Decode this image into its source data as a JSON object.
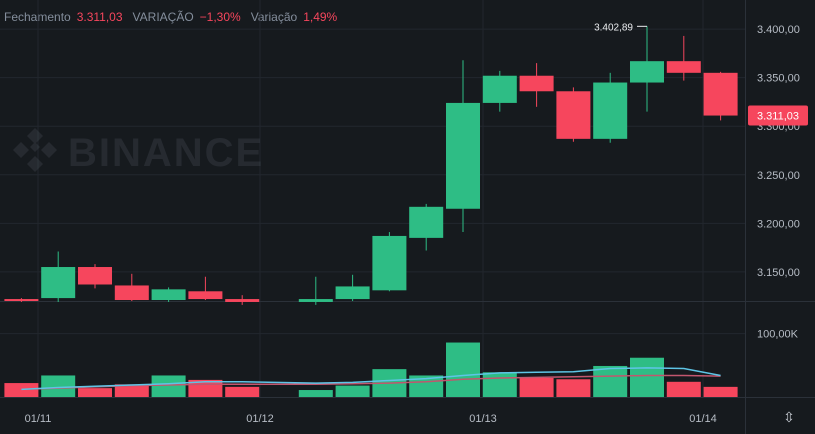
{
  "header": {
    "close_label": "Fechamento",
    "close_value": "3.311,03",
    "change_label": "VARIAÇÃO",
    "change_value": "−1,30%",
    "amplitude_label": "Variação",
    "amplitude_value": "1,49%"
  },
  "watermark": "BINANCE",
  "colors": {
    "up": "#2ebd85",
    "down": "#f6465d",
    "background": "#161a1e",
    "ma_short": "#5ec5e6",
    "ma_long": "#c2566e",
    "grid": "#22272e",
    "text": "#b7bdc6"
  },
  "chart_data": {
    "type": "candlestick",
    "x_ticks": [
      "01/11",
      "01/12",
      "01/13",
      "01/14"
    ],
    "price_ticks": [
      "3.400,00",
      "3.350,00",
      "3.300,00",
      "3.250,00",
      "3.200,00",
      "3.150,00"
    ],
    "price_tick_values": [
      3400,
      3350,
      3300,
      3250,
      3200,
      3150
    ],
    "price_range": [
      3120,
      3430
    ],
    "last_price": "3.311,03",
    "last_price_value": 3311.03,
    "high_annotation": "3.402,89",
    "high_annotation_value": 3402.89,
    "high_annotation_index": 17,
    "volume_tick": "100,00K",
    "volume_tick_value": 100000,
    "volume_range": [
      0,
      150000
    ],
    "candles": [
      {
        "o": 3122,
        "h": 3123,
        "l": 3119,
        "c": 3120
      },
      {
        "o": 3123,
        "h": 3171,
        "l": 3119,
        "c": 3155
      },
      {
        "o": 3155,
        "h": 3158,
        "l": 3133,
        "c": 3137
      },
      {
        "o": 3136,
        "h": 3148,
        "l": 3120,
        "c": 3121
      },
      {
        "o": 3121,
        "h": 3134,
        "l": 3119,
        "c": 3132
      },
      {
        "o": 3130,
        "h": 3145,
        "l": 3121,
        "c": 3122
      },
      {
        "o": 3122,
        "h": 3126,
        "l": 3116,
        "c": 3119
      },
      {
        "o": null,
        "h": null,
        "l": null,
        "c": null
      },
      {
        "o": 3119,
        "h": 3145,
        "l": 3116,
        "c": 3122
      },
      {
        "o": 3122,
        "h": 3147,
        "l": 3120,
        "c": 3135
      },
      {
        "o": 3131,
        "h": 3191,
        "l": 3130,
        "c": 3187
      },
      {
        "o": 3185,
        "h": 3220,
        "l": 3172,
        "c": 3217
      },
      {
        "o": 3215,
        "h": 3368,
        "l": 3191,
        "c": 3324
      },
      {
        "o": 3324,
        "h": 3357,
        "l": 3315,
        "c": 3352
      },
      {
        "o": 3352,
        "h": 3365,
        "l": 3320,
        "c": 3336
      },
      {
        "o": 3336,
        "h": 3340,
        "l": 3284,
        "c": 3287
      },
      {
        "o": 3287,
        "h": 3355,
        "l": 3283,
        "c": 3345
      },
      {
        "o": 3345,
        "h": 3403,
        "l": 3315,
        "c": 3367
      },
      {
        "o": 3367,
        "h": 3393,
        "l": 3347,
        "c": 3355
      },
      {
        "o": 3355,
        "h": 3356,
        "l": 3306,
        "c": 3311
      }
    ],
    "volumes": [
      22000,
      34000,
      14000,
      20000,
      34000,
      27000,
      16000,
      0,
      11000,
      18000,
      44000,
      34000,
      86000,
      39000,
      30000,
      28000,
      49000,
      62000,
      24000,
      16000
    ],
    "ma_short": [
      12000,
      15000,
      17000,
      19000,
      21000,
      24000,
      24000,
      null,
      22000,
      23000,
      26000,
      29000,
      34000,
      38000,
      39000,
      40000,
      45000,
      46000,
      45000,
      34000
    ],
    "ma_long": [
      12000,
      14000,
      16000,
      18000,
      19000,
      20000,
      20000,
      null,
      20000,
      21000,
      22000,
      24000,
      28000,
      30000,
      31000,
      32000,
      33000,
      34000,
      34000,
      33000
    ]
  }
}
